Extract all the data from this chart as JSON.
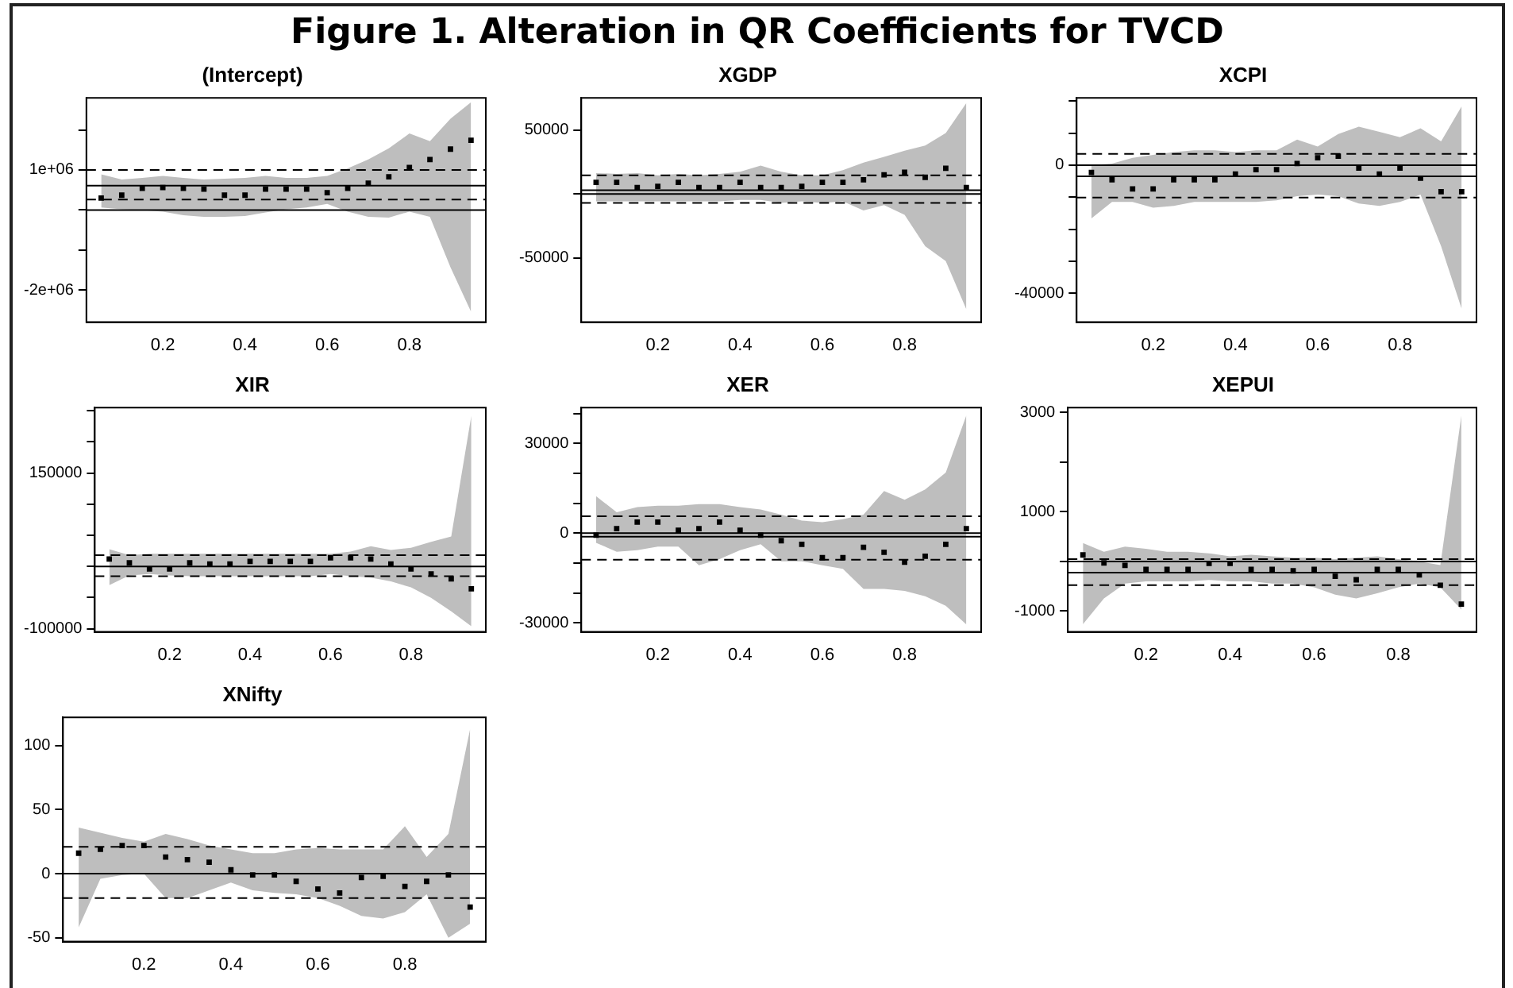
{
  "chart_data": [
    {
      "type": "scatter",
      "title": "(Intercept)",
      "annotations": [
        "Figure 1. Alteration in QR Coefficients for TVCD"
      ],
      "marker": "square",
      "x": [
        0.05,
        0.1,
        0.15,
        0.2,
        0.25,
        0.3,
        0.35,
        0.4,
        0.45,
        0.5,
        0.55,
        0.6,
        0.65,
        0.7,
        0.75,
        0.8,
        0.85,
        0.9,
        0.95
      ],
      "xlim": [
        0.014,
        0.986
      ],
      "xticks": [
        0.2,
        0.4,
        0.6,
        0.8
      ],
      "ylim": [
        -2800000,
        2800000
      ],
      "yticks": [
        {
          "value": -2000000,
          "label": "-2e+06"
        },
        {
          "value": -1000000,
          "label": null
        },
        {
          "value": 0,
          "label": null
        },
        {
          "value": 1000000,
          "label": "1e+06"
        },
        {
          "value": 2000000,
          "label": null
        }
      ],
      "series": [
        {
          "type": "scatter",
          "color": "#000000",
          "values": [
            300000,
            370000,
            540000,
            560000,
            540000,
            520000,
            370000,
            370000,
            520000,
            520000,
            520000,
            430000,
            540000,
            670000,
            830000,
            1060000,
            1260000,
            1520000,
            1740000
          ],
          "upper": [
            890000,
            760000,
            800000,
            850000,
            800000,
            760000,
            780000,
            800000,
            850000,
            800000,
            800000,
            850000,
            1040000,
            1260000,
            1540000,
            1910000,
            1720000,
            2280000,
            2690000
          ],
          "lower": [
            60000,
            20000,
            0,
            -40000,
            -130000,
            -170000,
            -170000,
            -150000,
            -60000,
            20000,
            60000,
            150000,
            -40000,
            -170000,
            -190000,
            -40000,
            -170000,
            -1430000,
            -2540000
          ]
        }
      ],
      "ref_lines": [
        {
          "axis": "y",
          "value": 0,
          "line_style": "solid"
        },
        {
          "axis": "y",
          "value": 610000,
          "line_style": "solid"
        },
        {
          "axis": "y",
          "value": 1000000,
          "line_style": "dashed"
        },
        {
          "axis": "y",
          "value": 260000,
          "line_style": "dashed"
        }
      ]
    },
    {
      "type": "scatter",
      "title": "XGDP",
      "marker": "square",
      "x": [
        0.05,
        0.1,
        0.15,
        0.2,
        0.25,
        0.3,
        0.35,
        0.4,
        0.45,
        0.5,
        0.55,
        0.6,
        0.65,
        0.7,
        0.75,
        0.8,
        0.85,
        0.9,
        0.95
      ],
      "xlim": [
        0.014,
        0.986
      ],
      "xticks": [
        0.2,
        0.4,
        0.6,
        0.8
      ],
      "ylim": [
        -100000,
        75000
      ],
      "yticks": [
        {
          "value": -50000,
          "label": "-50000"
        },
        {
          "value": 0,
          "label": null
        },
        {
          "value": 50000,
          "label": "50000"
        }
      ],
      "series": [
        {
          "type": "scatter",
          "color": "#000000",
          "values": [
            9000,
            9000,
            5000,
            6000,
            9000,
            5000,
            5000,
            9000,
            5000,
            5000,
            6000,
            9000,
            9000,
            11000,
            15000,
            17000,
            13000,
            20000,
            5000
          ],
          "upper": [
            16300,
            15700,
            16300,
            14500,
            15700,
            14500,
            15700,
            17400,
            22100,
            17400,
            14500,
            14500,
            18600,
            24400,
            29000,
            33700,
            37800,
            47600,
            70900
          ],
          "lower": [
            -5800,
            -5800,
            -5800,
            -5800,
            -5800,
            -5800,
            -5800,
            -4600,
            -4600,
            -7000,
            -5800,
            -7000,
            -5800,
            -12800,
            -8700,
            -16300,
            -40700,
            -52300,
            -90100
          ]
        }
      ],
      "ref_lines": [
        {
          "axis": "y",
          "value": 0,
          "line_style": "solid"
        },
        {
          "axis": "y",
          "value": 3000,
          "line_style": "solid"
        },
        {
          "axis": "y",
          "value": 14500,
          "line_style": "dashed"
        },
        {
          "axis": "y",
          "value": -7000,
          "line_style": "dashed"
        }
      ]
    },
    {
      "type": "scatter",
      "title": "XCPI",
      "marker": "square",
      "x": [
        0.05,
        0.1,
        0.15,
        0.2,
        0.25,
        0.3,
        0.35,
        0.4,
        0.45,
        0.5,
        0.55,
        0.6,
        0.65,
        0.7,
        0.75,
        0.8,
        0.85,
        0.9,
        0.95
      ],
      "xlim": [
        0.014,
        0.986
      ],
      "xticks": [
        0.2,
        0.4,
        0.6,
        0.8
      ],
      "ylim": [
        -49000,
        21000
      ],
      "yticks": [
        {
          "value": -40000,
          "label": "-40000"
        },
        {
          "value": -30000,
          "label": null
        },
        {
          "value": -20000,
          "label": null
        },
        {
          "value": -10000,
          "label": null
        },
        {
          "value": 0,
          "label": "0"
        },
        {
          "value": 10000,
          "label": null
        },
        {
          "value": 20000,
          "label": null
        }
      ],
      "series": [
        {
          "type": "scatter",
          "color": "#000000",
          "values": [
            -2300,
            -4600,
            -7400,
            -7400,
            -4600,
            -4600,
            -4600,
            -2800,
            -1400,
            -1400,
            500,
            2300,
            2800,
            -900,
            -2800,
            -900,
            -4100,
            -8300,
            -8300
          ],
          "upper": [
            0,
            500,
            2300,
            3200,
            4100,
            4600,
            4600,
            4100,
            4600,
            4600,
            8000,
            5800,
            9700,
            12000,
            10400,
            8700,
            11500,
            7400,
            18400
          ],
          "lower": [
            -16600,
            -11500,
            -11500,
            -13300,
            -12700,
            -11500,
            -11500,
            -11500,
            -11500,
            -11000,
            -9700,
            -9200,
            -9700,
            -12000,
            -12700,
            -11500,
            -9200,
            -25300,
            -44900
          ]
        }
      ],
      "ref_lines": [
        {
          "axis": "y",
          "value": 0,
          "line_style": "solid"
        },
        {
          "axis": "y",
          "value": -3500,
          "line_style": "solid"
        },
        {
          "axis": "y",
          "value": 3500,
          "line_style": "dashed"
        },
        {
          "axis": "y",
          "value": -10100,
          "line_style": "dashed"
        }
      ]
    },
    {
      "type": "scatter",
      "title": "XIR",
      "marker": "square",
      "x": [
        0.05,
        0.1,
        0.15,
        0.2,
        0.25,
        0.3,
        0.35,
        0.4,
        0.45,
        0.5,
        0.55,
        0.6,
        0.65,
        0.7,
        0.75,
        0.8,
        0.85,
        0.9,
        0.95
      ],
      "xlim": [
        0.014,
        0.986
      ],
      "xticks": [
        0.2,
        0.4,
        0.6,
        0.8
      ],
      "ylim": [
        -105000,
        255000
      ],
      "yticks": [
        {
          "value": -100000,
          "label": "-100000"
        },
        {
          "value": -50000,
          "label": null
        },
        {
          "value": 0,
          "label": null
        },
        {
          "value": 50000,
          "label": null
        },
        {
          "value": 100000,
          "label": null
        },
        {
          "value": 150000,
          "label": "150000"
        },
        {
          "value": 200000,
          "label": null
        },
        {
          "value": 250000,
          "label": null
        }
      ],
      "series": [
        {
          "type": "scatter",
          "color": "#000000",
          "values": [
            12000,
            6000,
            -4000,
            -4000,
            6000,
            4000,
            4000,
            8000,
            8000,
            8000,
            8000,
            14000,
            14000,
            12000,
            4000,
            -4000,
            -12000,
            -20000,
            -36000
          ],
          "upper": [
            27600,
            18000,
            20400,
            20400,
            20400,
            20400,
            20400,
            20400,
            20400,
            20400,
            20400,
            20400,
            24000,
            32400,
            26400,
            30000,
            39600,
            48000,
            242000
          ],
          "lower": [
            -30000,
            -14400,
            -12000,
            -14400,
            -15600,
            -15600,
            -15600,
            -15600,
            -15600,
            -15600,
            -15600,
            -12000,
            -15600,
            -18000,
            -24000,
            -33600,
            -50400,
            -72000,
            -96000
          ]
        }
      ],
      "ref_lines": [
        {
          "axis": "y",
          "value": 0,
          "line_style": "solid"
        },
        {
          "axis": "y",
          "value": 18000,
          "line_style": "dashed"
        },
        {
          "axis": "y",
          "value": -15600,
          "line_style": "dashed"
        }
      ]
    },
    {
      "type": "scatter",
      "title": "XER",
      "marker": "square",
      "x": [
        0.05,
        0.1,
        0.15,
        0.2,
        0.25,
        0.3,
        0.35,
        0.4,
        0.45,
        0.5,
        0.55,
        0.6,
        0.65,
        0.7,
        0.75,
        0.8,
        0.85,
        0.9,
        0.95
      ],
      "xlim": [
        0.014,
        0.986
      ],
      "xticks": [
        0.2,
        0.4,
        0.6,
        0.8
      ],
      "ylim": [
        -33000,
        42000
      ],
      "yticks": [
        {
          "value": -30000,
          "label": "-30000"
        },
        {
          "value": -20000,
          "label": null
        },
        {
          "value": -10000,
          "label": null
        },
        {
          "value": 0,
          "label": "0"
        },
        {
          "value": 10000,
          "label": null
        },
        {
          "value": 20000,
          "label": null
        },
        {
          "value": 30000,
          "label": "30000"
        },
        {
          "value": 40000,
          "label": null
        }
      ],
      "series": [
        {
          "type": "scatter",
          "color": "#000000",
          "values": [
            -700,
            1500,
            3700,
            3700,
            1000,
            1500,
            3700,
            1000,
            -700,
            -2500,
            -3700,
            -8200,
            -8200,
            -4700,
            -6400,
            -9700,
            -7700,
            -3700,
            1500
          ],
          "upper": [
            12400,
            7000,
            8700,
            9200,
            9200,
            9700,
            9700,
            8700,
            7900,
            6200,
            4200,
            3700,
            4700,
            6200,
            14100,
            11200,
            14600,
            20300,
            39400
          ],
          "lower": [
            -3200,
            -6200,
            -5700,
            -4500,
            -4500,
            -10700,
            -8700,
            -5700,
            -3700,
            -9400,
            -9400,
            -10700,
            -11900,
            -18600,
            -18600,
            -19300,
            -21100,
            -24300,
            -30500
          ]
        }
      ],
      "ref_lines": [
        {
          "axis": "y",
          "value": 0,
          "line_style": "solid"
        },
        {
          "axis": "y",
          "value": -1200,
          "line_style": "solid"
        },
        {
          "axis": "y",
          "value": 5700,
          "line_style": "dashed"
        },
        {
          "axis": "y",
          "value": -8900,
          "line_style": "dashed"
        }
      ]
    },
    {
      "type": "scatter",
      "title": "XEPUI",
      "marker": "square",
      "x": [
        0.05,
        0.1,
        0.15,
        0.2,
        0.25,
        0.3,
        0.35,
        0.4,
        0.45,
        0.5,
        0.55,
        0.6,
        0.65,
        0.7,
        0.75,
        0.8,
        0.85,
        0.9,
        0.95
      ],
      "xlim": [
        0.014,
        0.986
      ],
      "xticks": [
        0.2,
        0.4,
        0.6,
        0.8
      ],
      "ylim": [
        -1420,
        3100
      ],
      "yticks": [
        {
          "value": -1000,
          "label": "-1000"
        },
        {
          "value": 0,
          "label": null
        },
        {
          "value": 1000,
          "label": "1000"
        },
        {
          "value": 2000,
          "label": null
        },
        {
          "value": 3000,
          "label": "3000"
        }
      ],
      "series": [
        {
          "type": "scatter",
          "color": "#000000",
          "values": [
            130,
            -30,
            -80,
            -160,
            -160,
            -160,
            -40,
            -40,
            -160,
            -160,
            -190,
            -160,
            -300,
            -370,
            -160,
            -160,
            -270,
            -480,
            -860
          ],
          "upper": [
            372,
            194,
            298,
            253,
            194,
            194,
            164,
            104,
            134,
            104,
            75,
            75,
            45,
            75,
            104,
            45,
            0,
            -75,
            2935
          ],
          "lower": [
            -1267,
            -745,
            -447,
            -402,
            -402,
            -402,
            -373,
            -402,
            -402,
            -447,
            -447,
            -522,
            -671,
            -745,
            -641,
            -522,
            -447,
            -522,
            -969
          ]
        }
      ],
      "ref_lines": [
        {
          "axis": "y",
          "value": 0,
          "line_style": "solid"
        },
        {
          "axis": "y",
          "value": -224,
          "line_style": "solid"
        },
        {
          "axis": "y",
          "value": 45,
          "line_style": "dashed"
        },
        {
          "axis": "y",
          "value": -477,
          "line_style": "dashed"
        }
      ]
    },
    {
      "type": "scatter",
      "title": "XNifty",
      "marker": "square",
      "x": [
        0.05,
        0.1,
        0.15,
        0.2,
        0.25,
        0.3,
        0.35,
        0.4,
        0.45,
        0.5,
        0.55,
        0.6,
        0.65,
        0.7,
        0.75,
        0.8,
        0.85,
        0.9,
        0.95
      ],
      "xlim": [
        0.014,
        0.986
      ],
      "xticks": [
        0.2,
        0.4,
        0.6,
        0.8
      ],
      "ylim": [
        -53,
        122
      ],
      "yticks": [
        -50,
        0,
        50,
        100
      ],
      "series": [
        {
          "type": "scatter",
          "color": "#000000",
          "values": [
            16,
            19,
            22,
            22,
            13,
            11,
            9,
            3,
            -1,
            -1,
            -6,
            -12,
            -15,
            -3,
            -2,
            -10,
            -6,
            -1,
            -26
          ],
          "upper": [
            36,
            32,
            28,
            25,
            31,
            27,
            22,
            19,
            16,
            16,
            19,
            20,
            19,
            19,
            19,
            37,
            13,
            31,
            113
          ],
          "lower": [
            -42,
            -4,
            -1,
            0,
            -19,
            -19,
            -13,
            -7,
            -13,
            -15,
            -16,
            -19,
            -25,
            -33,
            -35,
            -30,
            -16,
            -50,
            -39
          ]
        }
      ],
      "ref_lines": [
        {
          "axis": "y",
          "value": 0,
          "line_style": "solid"
        },
        {
          "axis": "y",
          "value": 21,
          "line_style": "dashed"
        },
        {
          "axis": "y",
          "value": -19,
          "line_style": "dashed"
        }
      ]
    }
  ]
}
